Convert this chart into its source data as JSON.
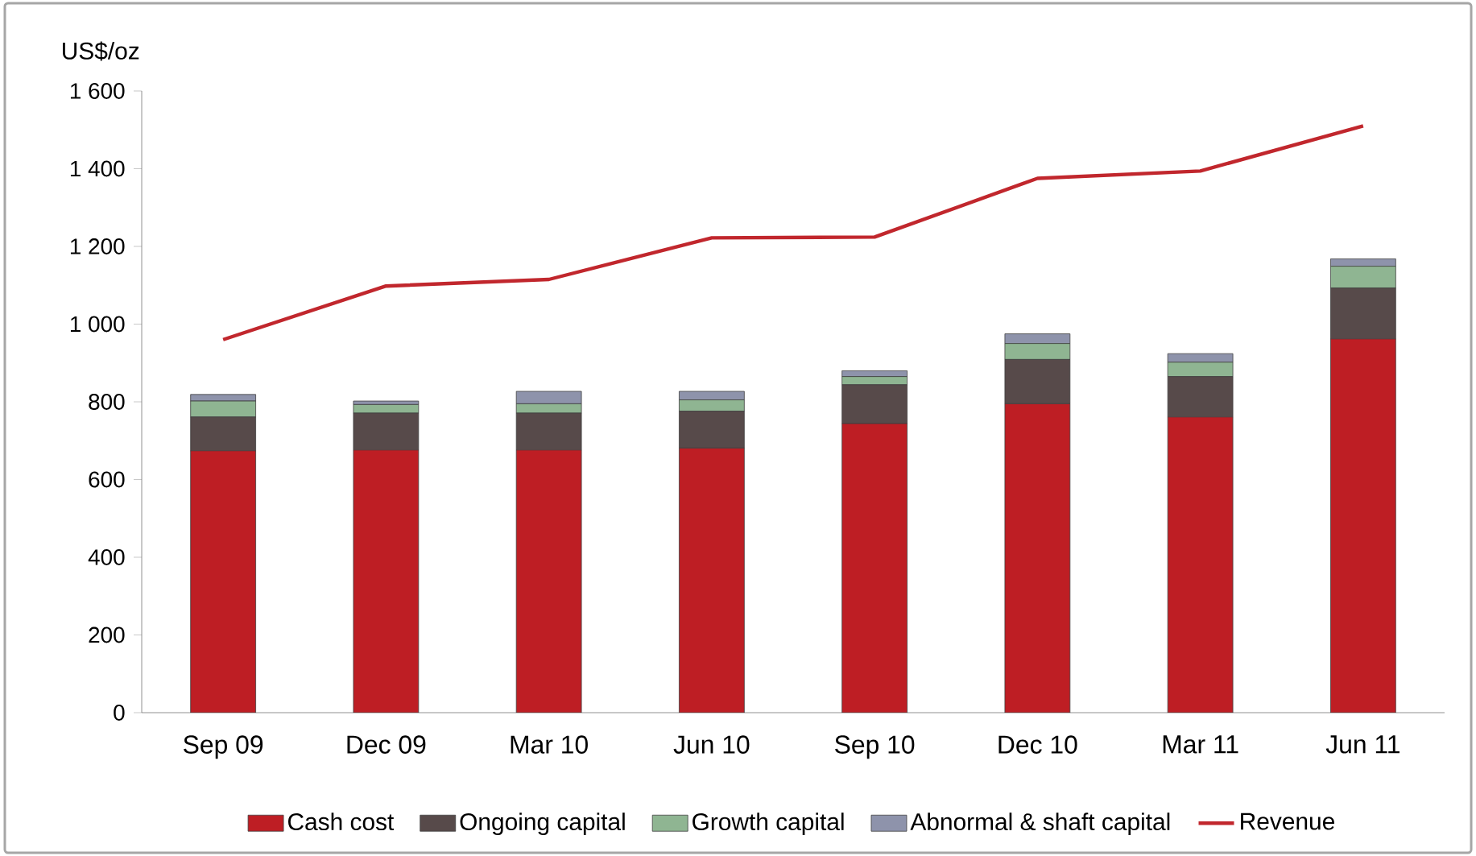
{
  "chart_data": {
    "type": "bar",
    "stacked": true,
    "ylabel": "US$/oz",
    "categories": [
      "Sep 09",
      "Dec 09",
      "Mar 10",
      "Jun 10",
      "Sep 10",
      "Dec 10",
      "Mar 11",
      "Jun 11"
    ],
    "series": [
      {
        "name": "Cash cost",
        "color": "#be1e24",
        "values": [
          674,
          676,
          676,
          681,
          744,
          795,
          761,
          962
        ]
      },
      {
        "name": "Ongoing capital",
        "color": "#574a4a",
        "values": [
          87,
          95,
          95,
          95,
          100,
          114,
          104,
          131
        ]
      },
      {
        "name": "Growth capital",
        "color": "#8fb592",
        "values": [
          41,
          22,
          24,
          29,
          21,
          41,
          37,
          56
        ]
      },
      {
        "name": "Abnormal & shaft capital",
        "color": "#8e93ab",
        "values": [
          17,
          9,
          32,
          22,
          15,
          25,
          22,
          19
        ]
      },
      {
        "name": "Revenue",
        "type": "line",
        "color": "#c1272d",
        "values": [
          960,
          1098,
          1115,
          1222,
          1224,
          1375,
          1394,
          1510
        ]
      }
    ],
    "ylim": [
      0,
      1600
    ],
    "yticks": [
      0,
      200,
      400,
      600,
      800,
      {
        "value": 1000,
        "label": "1 000"
      },
      {
        "value": 1200,
        "label": "1 200"
      },
      {
        "value": 1400,
        "label": "1 400"
      },
      {
        "value": 1600,
        "label": "1 600"
      }
    ],
    "legend": "bottom"
  }
}
